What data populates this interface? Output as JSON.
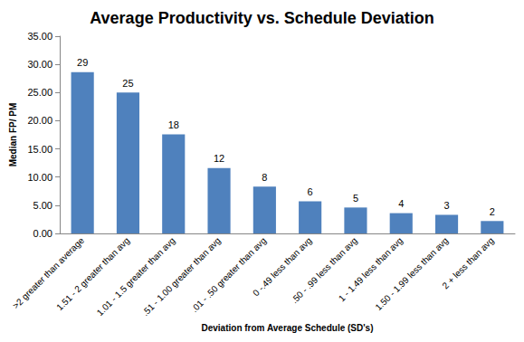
{
  "chart_data": {
    "type": "bar",
    "title": "Average Productivity vs. Schedule Deviation",
    "x_label": "Deviation from Average Schedule (SD's)",
    "y_label": "Median FP/ PM",
    "categories": [
      ">2 greater than average",
      "1.51 - 2 greater than avg",
      "1.01 - 1.5 greater than avg",
      ".51 - 1.00 greater than avg",
      ".01 - .50 greater than avg",
      "0 -.49 less than avg",
      ".50 - .99 less than avg",
      "1 - 1.49 less than avg",
      "1.50 - 1.99 less than avg",
      "2 + less than avg"
    ],
    "values": [
      28.6,
      25.0,
      17.6,
      11.6,
      8.3,
      5.7,
      4.6,
      3.6,
      3.3,
      2.2
    ],
    "value_labels": [
      "29",
      "25",
      "18",
      "12",
      "8",
      "6",
      "5",
      "4",
      "3",
      "2"
    ],
    "data_labels": true,
    "color": "#4f81bd",
    "ylim": [
      0,
      35
    ],
    "yticks": [
      {
        "value": 0,
        "label": "0.00"
      },
      {
        "value": 5,
        "label": "5.00"
      },
      {
        "value": 10,
        "label": "10.00"
      },
      {
        "value": 15,
        "label": "15.00"
      },
      {
        "value": 20,
        "label": "20.00"
      },
      {
        "value": 25,
        "label": "25.00"
      },
      {
        "value": 30,
        "label": "30.00"
      },
      {
        "value": 35,
        "label": "35.00"
      }
    ],
    "grid": false
  }
}
